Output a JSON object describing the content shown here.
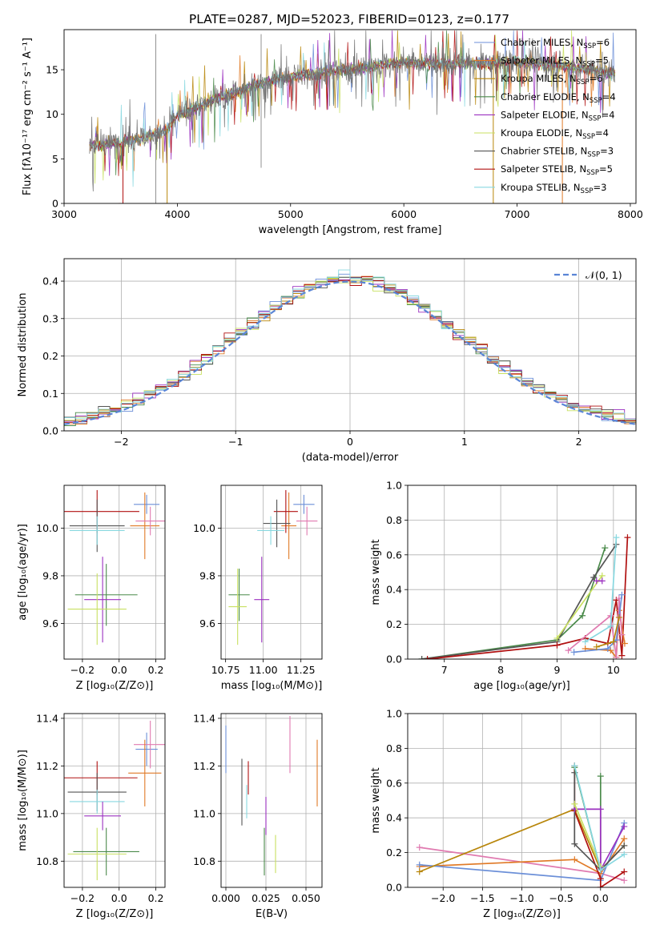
{
  "figure_title": "PLATE=0287, MJD=52023, FIBERID=0123, z=0.177",
  "colors": [
    "#6b8fd8",
    "#e07a27",
    "#b8860b",
    "#4a8a4a",
    "#9b30c0",
    "#c8e060",
    "#555555",
    "#b01010",
    "#88d8e0",
    "#e07ab0"
  ],
  "chart_data": [
    {
      "id": "spectrum",
      "type": "line",
      "xlabel": "wavelength [Angstrom, rest frame]",
      "ylabel": "Flux [fλ10⁻¹⁷ erg cm⁻² s⁻¹ A⁻¹]",
      "xlim": [
        3000,
        8050
      ],
      "ylim": [
        0,
        19.5
      ],
      "xticks": [
        3000,
        4000,
        5000,
        6000,
        7000,
        8000
      ],
      "yticks": [
        0,
        5,
        10,
        15
      ],
      "legend_position": "top-right",
      "x_range_observed": [
        3225,
        7865
      ],
      "continuum": [
        [
          3225,
          6.5
        ],
        [
          3500,
          6.8
        ],
        [
          3700,
          7.4
        ],
        [
          3900,
          8.2
        ],
        [
          4000,
          9.8
        ],
        [
          4300,
          11.5
        ],
        [
          4700,
          13.3
        ],
        [
          5000,
          14.3
        ],
        [
          5500,
          15.0
        ],
        [
          6000,
          15.8
        ],
        [
          6500,
          15.6
        ],
        [
          7000,
          15.9
        ],
        [
          7500,
          15.3
        ],
        [
          7865,
          14.5
        ]
      ],
      "series": [
        {
          "name": "Chabrier MILES, N",
          "sub": "SSP",
          "suffix": "=6",
          "color_index": 0
        },
        {
          "name": "Salpeter MILES, N",
          "sub": "SSP",
          "suffix": "=5",
          "color_index": 1
        },
        {
          "name": "Kroupa MILES, N",
          "sub": "SSP",
          "suffix": "=6",
          "color_index": 2
        },
        {
          "name": "Chabrier ELODIE, N",
          "sub": "SSP",
          "suffix": "=4",
          "color_index": 3
        },
        {
          "name": "Salpeter ELODIE, N",
          "sub": "SSP",
          "suffix": "=4",
          "color_index": 4
        },
        {
          "name": "Kroupa ELODIE, N",
          "sub": "SSP",
          "suffix": "=4",
          "color_index": 5
        },
        {
          "name": "Chabrier STELIB, N",
          "sub": "SSP",
          "suffix": "=3",
          "color_index": 6
        },
        {
          "name": "Salpeter STELIB, N",
          "sub": "SSP",
          "suffix": "=5",
          "color_index": 7
        },
        {
          "name": "Kroupa STELIB, N",
          "sub": "SSP",
          "suffix": "=3",
          "color_index": 8
        }
      ],
      "model_dropouts": [
        {
          "color_index": 7,
          "x_start": 3520
        },
        {
          "color_index": 2,
          "x_start": 3910
        },
        {
          "color_index": 2,
          "x_end": 6790
        },
        {
          "color_index": 1,
          "x_end": 7400
        }
      ]
    },
    {
      "id": "residuals",
      "type": "histogram",
      "xlabel": "(data-model)/error",
      "ylabel": "Normed distribution",
      "xlim": [
        -2.5,
        2.5
      ],
      "ylim": [
        0,
        0.46
      ],
      "xticks": [
        -2,
        -1,
        0,
        1,
        2
      ],
      "yticks": [
        0.0,
        0.1,
        0.2,
        0.3,
        0.4
      ],
      "grid": true,
      "legend_position": "top-right",
      "gaussian_label": "𝒩(0, 1)",
      "bin_width": 0.1
    },
    {
      "id": "age_vs_Z",
      "type": "errorbar",
      "xlabel": "Z [log₁₀(Z/Z⊙)]",
      "ylabel": "age  [log₁₀(age/yr)]",
      "xlim": [
        -0.3,
        0.25
      ],
      "ylim": [
        9.45,
        10.18
      ],
      "xticks": [
        -0.2,
        0.0,
        0.2
      ],
      "yticks": [
        9.6,
        9.8,
        10.0
      ],
      "grid": true,
      "points": [
        {
          "c": 0,
          "x": 0.15,
          "xerr": 0.07,
          "y": 10.1,
          "yerr": 0.04
        },
        {
          "c": 1,
          "x": 0.14,
          "xerr": 0.08,
          "y": 10.01,
          "yerr": 0.14
        },
        {
          "c": 7,
          "x": -0.12,
          "xerr": 0.23,
          "y": 10.07,
          "yerr": 0.09
        },
        {
          "c": 6,
          "x": -0.12,
          "xerr": 0.15,
          "y": 10.01,
          "yerr": 0.11
        },
        {
          "c": 8,
          "x": -0.12,
          "xerr": 0.15,
          "y": 9.99,
          "yerr": 0.06
        },
        {
          "c": 3,
          "x": -0.07,
          "xerr": 0.17,
          "y": 9.72,
          "yerr": 0.13
        },
        {
          "c": 4,
          "x": -0.09,
          "xerr": 0.1,
          "y": 9.7,
          "yerr": 0.18
        },
        {
          "c": 5,
          "x": -0.12,
          "xerr": 0.16,
          "y": 9.66,
          "yerr": 0.15
        },
        {
          "c": 9,
          "x": 0.17,
          "xerr": 0.08,
          "y": 10.03,
          "yerr": 0.06
        }
      ]
    },
    {
      "id": "age_vs_mass",
      "type": "errorbar",
      "xlabel": "mass [log₁₀(M/M⊙)]",
      "ylabel": "",
      "xlim": [
        10.72,
        11.39
      ],
      "ylim": [
        9.45,
        10.18
      ],
      "xticks": [
        10.75,
        11.0,
        11.25
      ],
      "yticks": [
        9.6,
        9.8,
        10.0
      ],
      "grid": true,
      "points": [
        {
          "c": 0,
          "x": 11.27,
          "xerr": 0.07,
          "y": 10.1,
          "yerr": 0.04
        },
        {
          "c": 1,
          "x": 11.17,
          "xerr": 0.05,
          "y": 10.01,
          "yerr": 0.14
        },
        {
          "c": 7,
          "x": 11.15,
          "xerr": 0.08,
          "y": 10.07,
          "yerr": 0.09
        },
        {
          "c": 6,
          "x": 11.09,
          "xerr": 0.09,
          "y": 10.02,
          "yerr": 0.1
        },
        {
          "c": 8,
          "x": 11.05,
          "xerr": 0.09,
          "y": 9.99,
          "yerr": 0.06
        },
        {
          "c": 3,
          "x": 10.84,
          "xerr": 0.07,
          "y": 9.72,
          "yerr": 0.11
        },
        {
          "c": 4,
          "x": 10.99,
          "xerr": 0.05,
          "y": 9.7,
          "yerr": 0.18
        },
        {
          "c": 5,
          "x": 10.83,
          "xerr": 0.06,
          "y": 9.67,
          "yerr": 0.16
        },
        {
          "c": 9,
          "x": 11.29,
          "xerr": 0.07,
          "y": 10.03,
          "yerr": 0.06
        }
      ]
    },
    {
      "id": "mass_weight_vs_age",
      "type": "line",
      "xlabel": "age  [log₁₀(age/yr)]",
      "ylabel": "mass weight",
      "xlim": [
        6.35,
        10.4
      ],
      "ylim": [
        0,
        1.0
      ],
      "xticks": [
        7,
        8,
        9,
        10
      ],
      "yticks": [
        0.0,
        0.2,
        0.4,
        0.6,
        0.8,
        1.0
      ],
      "grid": true,
      "series": [
        {
          "c": 3,
          "points": [
            [
              6.6,
              0.0
            ],
            [
              9.0,
              0.11
            ],
            [
              9.45,
              0.25
            ],
            [
              9.85,
              0.64
            ]
          ]
        },
        {
          "c": 6,
          "points": [
            [
              6.6,
              0.0
            ],
            [
              9.0,
              0.1
            ],
            [
              9.65,
              0.47
            ],
            [
              10.05,
              0.66
            ]
          ]
        },
        {
          "c": 5,
          "points": [
            [
              9.0,
              0.12
            ],
            [
              9.8,
              0.48
            ]
          ]
        },
        {
          "c": 4,
          "points": [
            [
              9.7,
              0.45
            ],
            [
              9.8,
              0.45
            ]
          ]
        },
        {
          "c": 7,
          "points": [
            [
              6.7,
              0.0
            ],
            [
              9.0,
              0.08
            ],
            [
              9.5,
              0.12
            ],
            [
              9.9,
              0.09
            ],
            [
              10.05,
              0.34
            ],
            [
              10.15,
              0.02
            ],
            [
              10.25,
              0.7
            ]
          ]
        },
        {
          "c": 1,
          "points": [
            [
              9.5,
              0.06
            ],
            [
              9.95,
              0.05
            ],
            [
              10.05,
              0.01
            ],
            [
              10.1,
              0.28
            ],
            [
              10.2,
              0.09
            ]
          ]
        },
        {
          "c": 9,
          "points": [
            [
              9.2,
              0.05
            ],
            [
              9.95,
              0.25
            ],
            [
              10.05,
              0.01
            ],
            [
              10.1,
              0.35
            ],
            [
              10.15,
              0.14
            ]
          ]
        },
        {
          "c": 0,
          "points": [
            [
              9.3,
              0.04
            ],
            [
              9.9,
              0.06
            ],
            [
              10.05,
              0.11
            ],
            [
              10.15,
              0.37
            ]
          ]
        },
        {
          "c": 8,
          "points": [
            [
              9.5,
              0.1
            ],
            [
              9.95,
              0.19
            ],
            [
              10.05,
              0.7
            ]
          ]
        },
        {
          "c": 2,
          "points": [
            [
              9.7,
              0.07
            ],
            [
              10.0,
              0.1
            ],
            [
              10.1,
              0.24
            ]
          ]
        }
      ]
    },
    {
      "id": "mass_vs_Z",
      "type": "errorbar",
      "xlabel": "Z [log₁₀(Z/Z⊙)]",
      "ylabel": "mass [log₁₀(M/M⊙)]",
      "xlim": [
        -0.3,
        0.25
      ],
      "ylim": [
        10.69,
        11.42
      ],
      "xticks": [
        -0.2,
        0.0,
        0.2
      ],
      "yticks": [
        10.8,
        11.0,
        11.2,
        11.4
      ],
      "grid": true,
      "points": [
        {
          "c": 0,
          "x": 0.15,
          "xerr": 0.06,
          "y": 11.27,
          "yerr": 0.07
        },
        {
          "c": 9,
          "x": 0.17,
          "xerr": 0.09,
          "y": 11.29,
          "yerr": 0.1
        },
        {
          "c": 1,
          "x": 0.14,
          "xerr": 0.09,
          "y": 11.17,
          "yerr": 0.14
        },
        {
          "c": 7,
          "x": -0.12,
          "xerr": 0.22,
          "y": 11.15,
          "yerr": 0.07
        },
        {
          "c": 6,
          "x": -0.12,
          "xerr": 0.16,
          "y": 11.09,
          "yerr": 0.08
        },
        {
          "c": 8,
          "x": -0.12,
          "xerr": 0.15,
          "y": 11.05,
          "yerr": 0.05
        },
        {
          "c": 4,
          "x": -0.09,
          "xerr": 0.1,
          "y": 10.99,
          "yerr": 0.06
        },
        {
          "c": 3,
          "x": -0.07,
          "xerr": 0.18,
          "y": 10.84,
          "yerr": 0.1
        },
        {
          "c": 5,
          "x": -0.12,
          "xerr": 0.16,
          "y": 10.83,
          "yerr": 0.11
        }
      ]
    },
    {
      "id": "mass_vs_ebv",
      "type": "errorbar",
      "xlabel": "E(B-V)",
      "ylabel": "",
      "xlim": [
        -0.003,
        0.06
      ],
      "ylim": [
        10.69,
        11.42
      ],
      "xticks": [
        0.0,
        0.025,
        0.05
      ],
      "xticklabels": [
        "0.000",
        "0.025",
        "0.050"
      ],
      "yticks": [
        10.8,
        11.0,
        11.2,
        11.4
      ],
      "grid": true,
      "points": [
        {
          "c": 0,
          "x": 0.0,
          "xerr": 0,
          "y": 11.27,
          "yerr": 0.1
        },
        {
          "c": 6,
          "x": 0.01,
          "xerr": 0,
          "y": 11.09,
          "yerr": 0.14
        },
        {
          "c": 7,
          "x": 0.014,
          "xerr": 0,
          "y": 11.15,
          "yerr": 0.07
        },
        {
          "c": 8,
          "x": 0.013,
          "xerr": 0,
          "y": 11.05,
          "yerr": 0.07
        },
        {
          "c": 3,
          "x": 0.024,
          "xerr": 0,
          "y": 10.84,
          "yerr": 0.1
        },
        {
          "c": 4,
          "x": 0.025,
          "xerr": 0,
          "y": 10.99,
          "yerr": 0.08
        },
        {
          "c": 5,
          "x": 0.031,
          "xerr": 0,
          "y": 10.83,
          "yerr": 0.08
        },
        {
          "c": 9,
          "x": 0.04,
          "xerr": 0,
          "y": 11.29,
          "yerr": 0.12
        },
        {
          "c": 1,
          "x": 0.057,
          "xerr": 0,
          "y": 11.17,
          "yerr": 0.14
        }
      ]
    },
    {
      "id": "mass_weight_vs_Z",
      "type": "line",
      "xlabel": "Z [log₁₀(Z/Z⊙)]",
      "ylabel": "mass weight",
      "xlim": [
        -2.45,
        0.45
      ],
      "ylim": [
        0,
        1.0
      ],
      "xticks": [
        -2.0,
        -1.5,
        -1.0,
        -0.5,
        0.0
      ],
      "yticks": [
        0.0,
        0.2,
        0.4,
        0.6,
        0.8,
        1.0
      ],
      "grid": true,
      "series": [
        {
          "c": 9,
          "points": [
            [
              -2.3,
              0.23
            ],
            [
              0.0,
              0.08
            ],
            [
              0.3,
              0.04
            ]
          ]
        },
        {
          "c": 1,
          "points": [
            [
              -2.3,
              0.12
            ],
            [
              -0.33,
              0.16
            ],
            [
              0.0,
              0.08
            ],
            [
              0.3,
              0.28
            ]
          ]
        },
        {
          "c": 0,
          "points": [
            [
              -2.3,
              0.13
            ],
            [
              0.0,
              0.04
            ],
            [
              0.3,
              0.37
            ]
          ]
        },
        {
          "c": 2,
          "points": [
            [
              -2.3,
              0.09
            ],
            [
              -0.33,
              0.45
            ],
            [
              0.0,
              0.1
            ],
            [
              0.3,
              0.24
            ]
          ]
        },
        {
          "c": 7,
          "points": [
            [
              -0.33,
              0.7
            ],
            [
              -0.33,
              0.44
            ],
            [
              0.0,
              0.05
            ],
            [
              0.0,
              0.0
            ],
            [
              0.3,
              0.09
            ]
          ]
        },
        {
          "c": 6,
          "points": [
            [
              -0.33,
              0.66
            ],
            [
              -0.33,
              0.25
            ],
            [
              0.0,
              0.1
            ],
            [
              0.3,
              0.24
            ]
          ]
        },
        {
          "c": 3,
          "points": [
            [
              -0.33,
              0.69
            ],
            [
              0.0,
              0.1
            ],
            [
              0.0,
              0.64
            ]
          ]
        },
        {
          "c": 4,
          "points": [
            [
              -0.33,
              0.45
            ],
            [
              0.0,
              0.45
            ],
            [
              0.0,
              0.1
            ],
            [
              0.3,
              0.35
            ]
          ]
        },
        {
          "c": 5,
          "points": [
            [
              -0.33,
              0.48
            ],
            [
              0.0,
              0.12
            ]
          ]
        },
        {
          "c": 8,
          "points": [
            [
              -0.33,
              0.7
            ],
            [
              0.0,
              0.1
            ],
            [
              0.3,
              0.19
            ]
          ]
        }
      ]
    }
  ]
}
